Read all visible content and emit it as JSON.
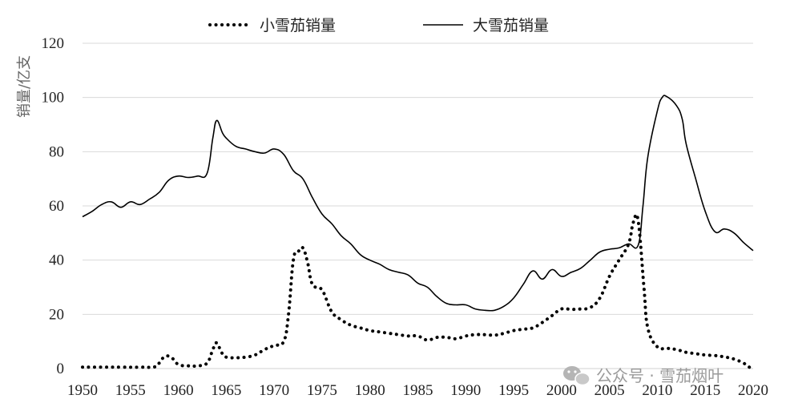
{
  "chart_data": {
    "type": "line",
    "title": "",
    "xlabel": "",
    "ylabel": "销量/亿支",
    "xlim": [
      1950,
      2020
    ],
    "ylim": [
      0,
      120
    ],
    "x_ticks": [
      1950,
      1955,
      1960,
      1965,
      1970,
      1975,
      1980,
      1985,
      1990,
      1995,
      2000,
      2005,
      2010,
      2015,
      2020
    ],
    "y_ticks": [
      0,
      20,
      40,
      60,
      80,
      100,
      120
    ],
    "grid": true,
    "legend_position": "top-center",
    "series": [
      {
        "name": "小雪茄销量",
        "style": "dotted",
        "color": "#000000",
        "points": [
          [
            1950,
            0.5
          ],
          [
            1952,
            0.5
          ],
          [
            1954,
            0.5
          ],
          [
            1956,
            0.5
          ],
          [
            1957.5,
            0.6
          ],
          [
            1958,
            2
          ],
          [
            1958.6,
            4.5
          ],
          [
            1959.3,
            4
          ],
          [
            1960,
            1.5
          ],
          [
            1961,
            1
          ],
          [
            1962,
            1
          ],
          [
            1963,
            2
          ],
          [
            1963.6,
            7
          ],
          [
            1964,
            9.5
          ],
          [
            1964.5,
            6
          ],
          [
            1965,
            4.2
          ],
          [
            1966,
            4
          ],
          [
            1967,
            4.2
          ],
          [
            1968,
            5
          ],
          [
            1969,
            7
          ],
          [
            1970,
            8.5
          ],
          [
            1971,
            10
          ],
          [
            1971.5,
            20
          ],
          [
            1972,
            40
          ],
          [
            1972.5,
            43
          ],
          [
            1973,
            44.5
          ],
          [
            1973.5,
            39
          ],
          [
            1974,
            31
          ],
          [
            1975,
            29
          ],
          [
            1976,
            21
          ],
          [
            1977,
            18
          ],
          [
            1978,
            16
          ],
          [
            1979,
            15
          ],
          [
            1980,
            14
          ],
          [
            1981,
            13.5
          ],
          [
            1982,
            13
          ],
          [
            1983,
            12.5
          ],
          [
            1984,
            12
          ],
          [
            1985,
            12
          ],
          [
            1986,
            10.5
          ],
          [
            1987,
            11.5
          ],
          [
            1988,
            11.5
          ],
          [
            1989,
            11
          ],
          [
            1990,
            12
          ],
          [
            1991,
            12.5
          ],
          [
            1992,
            12.5
          ],
          [
            1993,
            12.3
          ],
          [
            1994,
            13
          ],
          [
            1995,
            14
          ],
          [
            1996,
            14.5
          ],
          [
            1997,
            15
          ],
          [
            1998,
            17
          ],
          [
            1999,
            19.5
          ],
          [
            2000,
            22
          ],
          [
            2001,
            21.8
          ],
          [
            2002,
            22
          ],
          [
            2003,
            22.5
          ],
          [
            2004,
            26
          ],
          [
            2005,
            34
          ],
          [
            2006,
            40
          ],
          [
            2007,
            46
          ],
          [
            2007.5,
            54
          ],
          [
            2008,
            54.5
          ],
          [
            2008.6,
            30
          ],
          [
            2009,
            15
          ],
          [
            2010,
            8
          ],
          [
            2011,
            7.5
          ],
          [
            2012,
            7
          ],
          [
            2013,
            6
          ],
          [
            2014,
            5.5
          ],
          [
            2015,
            5
          ],
          [
            2016,
            4.8
          ],
          [
            2017,
            4.3
          ],
          [
            2018,
            3.5
          ],
          [
            2019,
            2
          ],
          [
            2019.6,
            0.5
          ]
        ]
      },
      {
        "name": "大雪茄销量",
        "style": "solid",
        "color": "#000000",
        "points": [
          [
            1950,
            56
          ],
          [
            1951,
            58
          ],
          [
            1952,
            60.5
          ],
          [
            1953,
            61.5
          ],
          [
            1954,
            59.5
          ],
          [
            1955,
            61.5
          ],
          [
            1956,
            60.5
          ],
          [
            1957,
            62.5
          ],
          [
            1958,
            65
          ],
          [
            1959,
            69.5
          ],
          [
            1960,
            71
          ],
          [
            1961,
            70.5
          ],
          [
            1962,
            71
          ],
          [
            1963,
            72
          ],
          [
            1963.6,
            85
          ],
          [
            1964,
            91.5
          ],
          [
            1964.6,
            87
          ],
          [
            1965,
            85
          ],
          [
            1966,
            82
          ],
          [
            1967,
            81
          ],
          [
            1968,
            80
          ],
          [
            1969,
            79.5
          ],
          [
            1970,
            81
          ],
          [
            1971,
            79
          ],
          [
            1972,
            73
          ],
          [
            1973,
            70
          ],
          [
            1974,
            63
          ],
          [
            1975,
            57
          ],
          [
            1976,
            53.5
          ],
          [
            1977,
            49
          ],
          [
            1978,
            46
          ],
          [
            1979,
            42
          ],
          [
            1980,
            40
          ],
          [
            1981,
            38.5
          ],
          [
            1982,
            36.5
          ],
          [
            1983,
            35.5
          ],
          [
            1984,
            34.5
          ],
          [
            1985,
            31.5
          ],
          [
            1986,
            30
          ],
          [
            1987,
            26.5
          ],
          [
            1988,
            24
          ],
          [
            1989,
            23.5
          ],
          [
            1990,
            23.5
          ],
          [
            1991,
            22
          ],
          [
            1992,
            21.5
          ],
          [
            1993,
            21.5
          ],
          [
            1994,
            23
          ],
          [
            1995,
            26
          ],
          [
            1996,
            31
          ],
          [
            1997,
            36
          ],
          [
            1998,
            33
          ],
          [
            1999,
            36.5
          ],
          [
            2000,
            34
          ],
          [
            2001,
            35.5
          ],
          [
            2002,
            37
          ],
          [
            2003,
            40
          ],
          [
            2004,
            43
          ],
          [
            2005,
            44
          ],
          [
            2006,
            44.5
          ],
          [
            2007,
            46
          ],
          [
            2008,
            45.5
          ],
          [
            2008.5,
            60
          ],
          [
            2009,
            78
          ],
          [
            2010,
            95
          ],
          [
            2010.5,
            100
          ],
          [
            2011,
            100.3
          ],
          [
            2012,
            97
          ],
          [
            2012.6,
            92
          ],
          [
            2013,
            83
          ],
          [
            2014,
            70
          ],
          [
            2015,
            58
          ],
          [
            2016,
            50.5
          ],
          [
            2017,
            51.5
          ],
          [
            2018,
            50
          ],
          [
            2019,
            46.5
          ],
          [
            2020,
            43.5
          ]
        ]
      }
    ]
  },
  "watermark": {
    "icon": "wechat-icon",
    "text": "公众号 · 雪茄烟叶"
  }
}
